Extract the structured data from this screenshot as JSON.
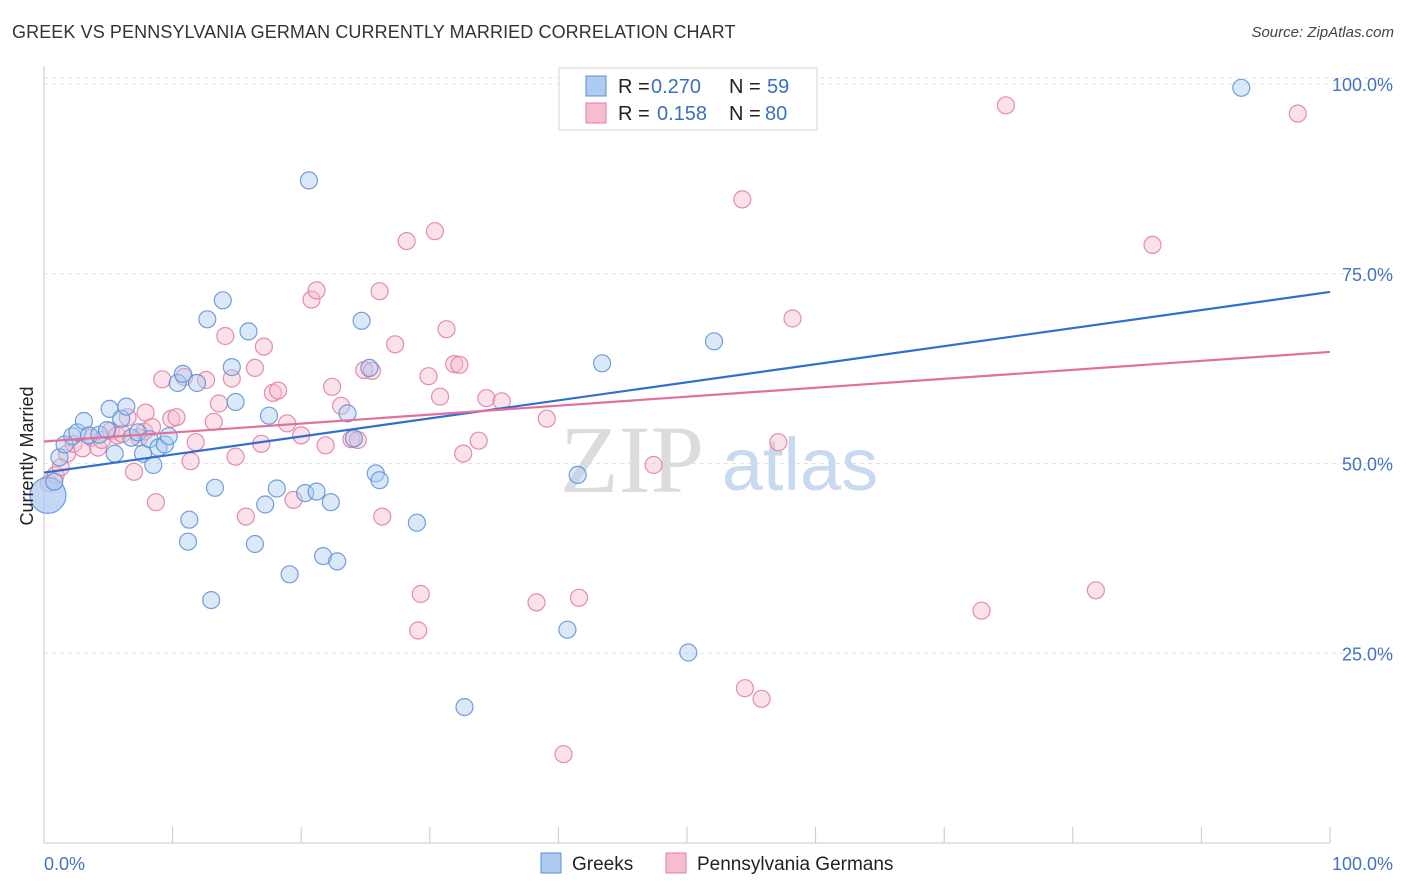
{
  "header": {
    "title": "GREEK VS PENNSYLVANIA GERMAN CURRENTLY MARRIED CORRELATION CHART",
    "source": "Source: ZipAtlas.com"
  },
  "legend": {
    "r_label": "R =",
    "n_label": "N =",
    "greeks": {
      "r": "0.270",
      "n": "59"
    },
    "pg": {
      "r": "0.158",
      "n": "80"
    }
  },
  "bottom_legend": {
    "greeks": "Greeks",
    "pg": "Pennsylvania Germans"
  },
  "watermark": {
    "zip": "ZIP",
    "atlas": "atlas"
  },
  "colors": {
    "greeks_fill": "#aecbf0",
    "greeks_stroke": "#5b8fd6",
    "greeks_line": "#2e6fd0",
    "pg_fill": "#f6bcd0",
    "pg_stroke": "#e07aa0",
    "pg_line": "#e2709a",
    "tick_text": "#4472c4"
  },
  "chart_data": {
    "type": "scatter",
    "title": "GREEK VS PENNSYLVANIA GERMAN CURRENTLY MARRIED CORRELATION CHART",
    "xlabel": "",
    "ylabel": "Currently Married",
    "xlim": [
      0,
      100
    ],
    "ylim": [
      0,
      105
    ],
    "x_ticks": [
      "0.0%",
      "100.0%"
    ],
    "y_ticks": [
      {
        "value": 25,
        "label": "25.0%"
      },
      {
        "value": 50,
        "label": "50.0%"
      },
      {
        "value": 75,
        "label": "75.0%"
      },
      {
        "value": 100,
        "label": "100.0%"
      }
    ],
    "grid": true,
    "legend_position": "top-center",
    "series": [
      {
        "name": "Greeks",
        "r": 0.27,
        "n": 59,
        "trend": {
          "x": [
            0,
            100
          ],
          "y": [
            48.8,
            72.6
          ]
        },
        "points": [
          [
            0.3,
            45.8
          ],
          [
            0.8,
            47.6
          ],
          [
            1.2,
            50.8
          ],
          [
            1.6,
            52.5
          ],
          [
            2.2,
            53.6
          ],
          [
            2.6,
            54.1
          ],
          [
            3.1,
            55.6
          ],
          [
            3.5,
            53.7
          ],
          [
            4.3,
            53.8
          ],
          [
            4.9,
            54.4
          ],
          [
            5.1,
            57.2
          ],
          [
            5.5,
            51.3
          ],
          [
            6.0,
            55.9
          ],
          [
            6.4,
            57.5
          ],
          [
            6.8,
            53.4
          ],
          [
            7.3,
            54.1
          ],
          [
            7.7,
            51.3
          ],
          [
            8.2,
            53.2
          ],
          [
            8.5,
            49.8
          ],
          [
            8.9,
            52.1
          ],
          [
            9.4,
            52.5
          ],
          [
            9.7,
            53.6
          ],
          [
            10.4,
            60.6
          ],
          [
            10.8,
            61.8
          ],
          [
            11.3,
            42.6
          ],
          [
            11.2,
            39.7
          ],
          [
            11.9,
            60.6
          ],
          [
            12.7,
            69.0
          ],
          [
            13.0,
            32.0
          ],
          [
            13.3,
            46.8
          ],
          [
            13.9,
            71.5
          ],
          [
            14.6,
            62.7
          ],
          [
            14.9,
            58.1
          ],
          [
            15.9,
            67.4
          ],
          [
            16.4,
            39.4
          ],
          [
            17.2,
            44.6
          ],
          [
            17.5,
            56.3
          ],
          [
            18.1,
            46.7
          ],
          [
            19.1,
            35.4
          ],
          [
            20.3,
            46.1
          ],
          [
            20.6,
            87.3
          ],
          [
            21.2,
            46.3
          ],
          [
            21.7,
            37.8
          ],
          [
            22.3,
            44.9
          ],
          [
            22.8,
            37.1
          ],
          [
            23.6,
            56.6
          ],
          [
            24.1,
            53.3
          ],
          [
            24.7,
            68.8
          ],
          [
            25.3,
            62.6
          ],
          [
            25.8,
            48.7
          ],
          [
            26.1,
            47.8
          ],
          [
            29.0,
            42.2
          ],
          [
            32.7,
            17.9
          ],
          [
            40.7,
            28.1
          ],
          [
            41.5,
            48.5
          ],
          [
            43.4,
            63.2
          ],
          [
            50.1,
            25.1
          ],
          [
            52.1,
            66.1
          ],
          [
            93.1,
            99.5
          ]
        ]
      },
      {
        "name": "Pennsylvania Germans",
        "r": 0.158,
        "n": 80,
        "trend": {
          "x": [
            0,
            100
          ],
          "y": [
            52.9,
            64.7
          ]
        },
        "points": [
          [
            0.4,
            47.4
          ],
          [
            0.9,
            48.5
          ],
          [
            1.3,
            49.5
          ],
          [
            1.8,
            51.3
          ],
          [
            2.3,
            52.6
          ],
          [
            3.0,
            52.0
          ],
          [
            3.7,
            53.4
          ],
          [
            4.2,
            52.1
          ],
          [
            4.5,
            53.1
          ],
          [
            5.2,
            54.3
          ],
          [
            5.7,
            53.7
          ],
          [
            6.1,
            53.9
          ],
          [
            6.5,
            56.1
          ],
          [
            7.0,
            48.9
          ],
          [
            7.4,
            53.4
          ],
          [
            7.8,
            54.2
          ],
          [
            7.9,
            56.7
          ],
          [
            8.4,
            54.8
          ],
          [
            8.7,
            44.9
          ],
          [
            9.2,
            61.1
          ],
          [
            9.9,
            55.9
          ],
          [
            10.3,
            56.1
          ],
          [
            10.9,
            61.4
          ],
          [
            11.4,
            50.3
          ],
          [
            11.8,
            52.8
          ],
          [
            12.6,
            61.0
          ],
          [
            13.2,
            55.5
          ],
          [
            13.6,
            57.9
          ],
          [
            14.1,
            66.8
          ],
          [
            14.6,
            61.2
          ],
          [
            14.9,
            50.9
          ],
          [
            15.7,
            43.0
          ],
          [
            16.4,
            62.6
          ],
          [
            16.9,
            52.6
          ],
          [
            17.1,
            65.4
          ],
          [
            17.8,
            59.3
          ],
          [
            18.2,
            59.6
          ],
          [
            18.9,
            55.3
          ],
          [
            19.4,
            45.2
          ],
          [
            20.0,
            53.7
          ],
          [
            20.8,
            71.6
          ],
          [
            21.2,
            72.8
          ],
          [
            21.9,
            52.4
          ],
          [
            22.4,
            60.1
          ],
          [
            23.1,
            57.6
          ],
          [
            23.9,
            53.2
          ],
          [
            24.4,
            53.1
          ],
          [
            24.9,
            62.3
          ],
          [
            25.5,
            62.2
          ],
          [
            26.1,
            72.7
          ],
          [
            26.3,
            43.0
          ],
          [
            27.3,
            65.7
          ],
          [
            28.2,
            79.3
          ],
          [
            29.3,
            32.8
          ],
          [
            29.1,
            28.0
          ],
          [
            29.9,
            61.5
          ],
          [
            30.4,
            80.6
          ],
          [
            30.8,
            58.8
          ],
          [
            31.3,
            67.7
          ],
          [
            31.9,
            63.1
          ],
          [
            32.3,
            63.0
          ],
          [
            32.6,
            51.3
          ],
          [
            33.8,
            53.0
          ],
          [
            34.4,
            58.6
          ],
          [
            35.6,
            58.2
          ],
          [
            38.3,
            31.7
          ],
          [
            39.1,
            55.9
          ],
          [
            40.4,
            11.7
          ],
          [
            41.6,
            32.3
          ],
          [
            47.4,
            49.8
          ],
          [
            54.3,
            84.8
          ],
          [
            54.5,
            20.4
          ],
          [
            55.8,
            19.0
          ],
          [
            57.1,
            52.8
          ],
          [
            58.2,
            69.1
          ],
          [
            72.9,
            30.6
          ],
          [
            74.8,
            97.2
          ],
          [
            81.8,
            33.3
          ],
          [
            86.2,
            78.8
          ],
          [
            97.5,
            96.1
          ]
        ]
      }
    ]
  }
}
